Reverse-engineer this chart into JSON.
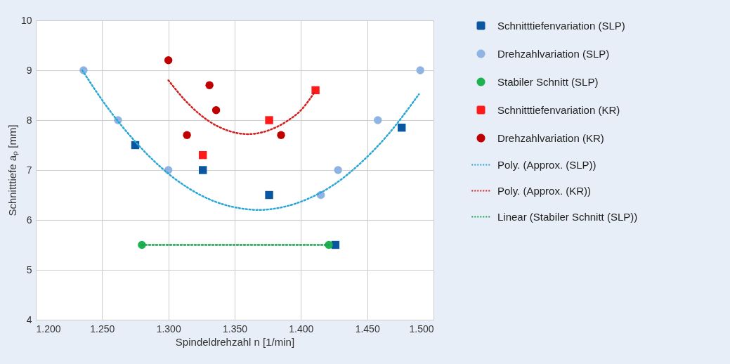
{
  "chart_data": {
    "type": "scatter",
    "xlabel": "Spindeldrehzahl n [1/min]",
    "ylabel": "Schnitttiefe aₚ [mm]",
    "xlim": [
      1200,
      1500
    ],
    "ylim": [
      4,
      10
    ],
    "xticks": [
      {
        "value": 1200,
        "label": "1.200"
      },
      {
        "value": 1250,
        "label": "1.250"
      },
      {
        "value": 1300,
        "label": "1.300"
      },
      {
        "value": 1350,
        "label": "1.350"
      },
      {
        "value": 1400,
        "label": "1.400"
      },
      {
        "value": 1450,
        "label": "1.450"
      },
      {
        "value": 1500,
        "label": "1.500"
      }
    ],
    "yticks": [
      4,
      5,
      6,
      7,
      8,
      9,
      10
    ],
    "grid": true,
    "legend": "right",
    "series": [
      {
        "name": "Schnitttiefenvariation (SLP)",
        "marker": "square",
        "color": "#0a56a0",
        "x": [
          1275,
          1326,
          1376,
          1426,
          1476
        ],
        "values": [
          7.5,
          7.0,
          6.5,
          5.5,
          7.85
        ]
      },
      {
        "name": "Drehzahlvariation (SLP)",
        "marker": "circle",
        "color": "#8fb4e3",
        "x": [
          1236,
          1262,
          1300,
          1415,
          1428,
          1458,
          1490
        ],
        "values": [
          9.0,
          8.0,
          7.0,
          6.5,
          7.0,
          8.0,
          9.0
        ]
      },
      {
        "name": "Stabiler Schnitt (SLP)",
        "marker": "circle",
        "color": "#1db350",
        "x": [
          1280,
          1421
        ],
        "values": [
          5.5,
          5.5
        ]
      },
      {
        "name": "Schnitttiefenvariation (KR)",
        "marker": "square",
        "color": "#ff1a1a",
        "x": [
          1326,
          1376,
          1411
        ],
        "values": [
          7.3,
          8.0,
          8.6
        ]
      },
      {
        "name": "Drehzahlvariation (KR)",
        "marker": "circle",
        "color": "#c00000",
        "x": [
          1300,
          1314,
          1331,
          1336,
          1385
        ],
        "values": [
          9.2,
          7.7,
          8.7,
          8.2,
          7.7
        ]
      },
      {
        "name": "Poly. (Approx. (SLP))",
        "type": "line",
        "line_style": "dotted",
        "color": "#2aa6d6",
        "x": [
          1235,
          1255,
          1275,
          1295,
          1315,
          1335,
          1355,
          1368,
          1385,
          1405,
          1425,
          1445,
          1465,
          1489
        ],
        "values": [
          9.0,
          8.22,
          7.57,
          7.04,
          6.64,
          6.37,
          6.23,
          6.2,
          6.25,
          6.42,
          6.71,
          7.14,
          7.69,
          8.52
        ]
      },
      {
        "name": "Poly. (Approx. (KR))",
        "type": "line",
        "line_style": "dotted",
        "color": "#d01f1f",
        "x": [
          1300,
          1315,
          1330,
          1345,
          1360,
          1375,
          1390,
          1400,
          1410
        ],
        "values": [
          8.8,
          8.33,
          7.99,
          7.79,
          7.72,
          7.79,
          7.99,
          8.2,
          8.55
        ]
      },
      {
        "name": "Linear (Stabiler Schnitt (SLP))",
        "type": "line",
        "line_style": "dotted",
        "color": "#1ea050",
        "x": [
          1280,
          1421
        ],
        "values": [
          5.5,
          5.5
        ]
      }
    ]
  }
}
